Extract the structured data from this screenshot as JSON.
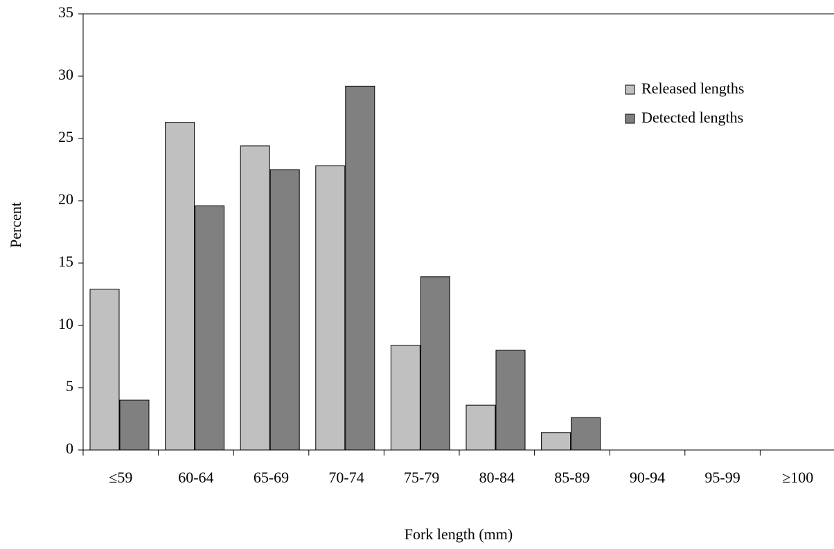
{
  "chart_data": {
    "type": "bar",
    "x_label": "Fork length (mm)",
    "y_label": "Percent",
    "categories": [
      "≤59",
      "60-64",
      "65-69",
      "70-74",
      "75-79",
      "80-84",
      "85-89",
      "90-94",
      "95-99",
      "≥100"
    ],
    "series": [
      {
        "name": "Released lengths",
        "color": "#c0c0c0",
        "values": [
          12.9,
          26.3,
          24.4,
          22.8,
          8.4,
          3.6,
          1.4,
          0,
          0,
          0
        ]
      },
      {
        "name": "Detected lengths",
        "color": "#808080",
        "values": [
          4.0,
          19.6,
          22.5,
          29.2,
          13.9,
          8.0,
          2.6,
          0,
          0,
          0
        ]
      }
    ],
    "ylim": [
      0,
      35
    ],
    "yticks": [
      0,
      5,
      10,
      15,
      20,
      25,
      30,
      35
    ],
    "legend": "upper-right"
  }
}
